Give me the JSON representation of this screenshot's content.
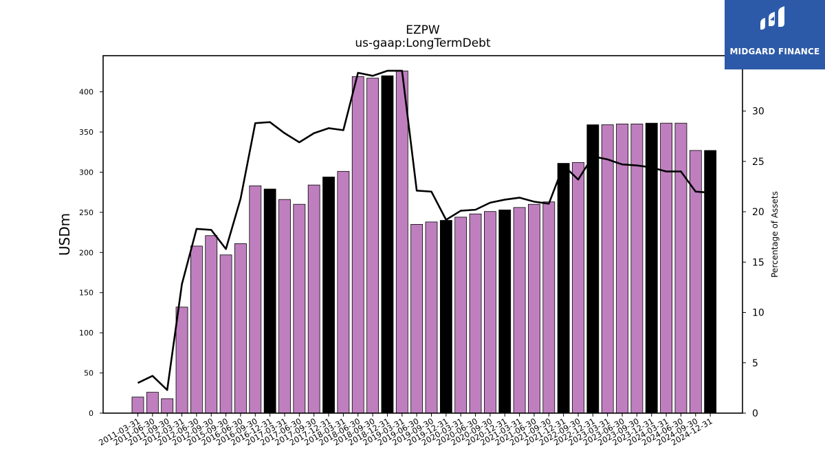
{
  "chart_data": {
    "type": "bar",
    "title": "EZPW",
    "subtitle": "us-gaap:LongTermDebt",
    "ylabel": "USDm",
    "y2label": "Percentage of Assets",
    "ylim": [
      0,
      445
    ],
    "y2lim": [
      0,
      35.5
    ],
    "yticks": [
      0,
      50,
      100,
      150,
      200,
      250,
      300,
      350,
      400
    ],
    "y2ticks": [
      0,
      5,
      10,
      15,
      20,
      25,
      30
    ],
    "categories": [
      "2011-03-31",
      "2011-06-30",
      "2011-09-30",
      "2012-03-31",
      "2012-06-30",
      "2012-09-30",
      "2015-09-30",
      "2016-06-30",
      "2016-09-30",
      "2016-12-31",
      "2017-03-31",
      "2017-06-30",
      "2017-09-30",
      "2017-12-31",
      "2018-03-31",
      "2018-06-30",
      "2018-09-30",
      "2018-12-31",
      "2019-03-31",
      "2019-06-30",
      "2019-09-30",
      "2019-12-31",
      "2020-03-31",
      "2020-06-30",
      "2020-09-30",
      "2020-12-31",
      "2021-03-31",
      "2021-06-30",
      "2021-09-30",
      "2021-12-31",
      "2022-09-30",
      "2022-12-31",
      "2023-03-31",
      "2023-06-30",
      "2023-09-30",
      "2023-12-31",
      "2024-03-31",
      "2024-06-30",
      "2024-09-30",
      "2024-12-31"
    ],
    "series": [
      {
        "type": "bar",
        "values": [
          20,
          26,
          18,
          132,
          208,
          221,
          197,
          211,
          283,
          279,
          266,
          260,
          284,
          294,
          301,
          419,
          417,
          420,
          426,
          235,
          238,
          240,
          244,
          248,
          251,
          253,
          256,
          260,
          263,
          311,
          312,
          359,
          359,
          360,
          360,
          361,
          361,
          361,
          327,
          327
        ],
        "highlight": [
          false,
          false,
          false,
          false,
          false,
          false,
          false,
          false,
          false,
          true,
          false,
          false,
          false,
          true,
          false,
          false,
          false,
          true,
          false,
          false,
          false,
          true,
          false,
          false,
          false,
          true,
          false,
          false,
          false,
          true,
          false,
          true,
          false,
          false,
          false,
          true,
          false,
          false,
          false,
          true
        ]
      },
      {
        "type": "line",
        "axis": "right",
        "values": [
          3.0,
          3.7,
          2.3,
          12.8,
          18.3,
          18.2,
          16.3,
          21.3,
          28.8,
          28.9,
          27.8,
          26.9,
          27.8,
          28.3,
          28.1,
          33.8,
          33.5,
          34.0,
          34.0,
          22.1,
          22.0,
          19.2,
          20.1,
          20.2,
          20.9,
          21.2,
          21.4,
          21.0,
          20.8,
          24.6,
          23.2,
          25.5,
          25.2,
          24.7,
          24.6,
          24.4,
          24.0,
          24.0,
          22.0,
          21.9
        ]
      }
    ],
    "colors": {
      "bar": "#bf7fbf",
      "highlight_bar": "#000000",
      "line": "#000000"
    },
    "legend": "none",
    "grid": false
  },
  "logo": {
    "text": "MIDGARD FINANCE",
    "background": "#2d5aa8"
  }
}
